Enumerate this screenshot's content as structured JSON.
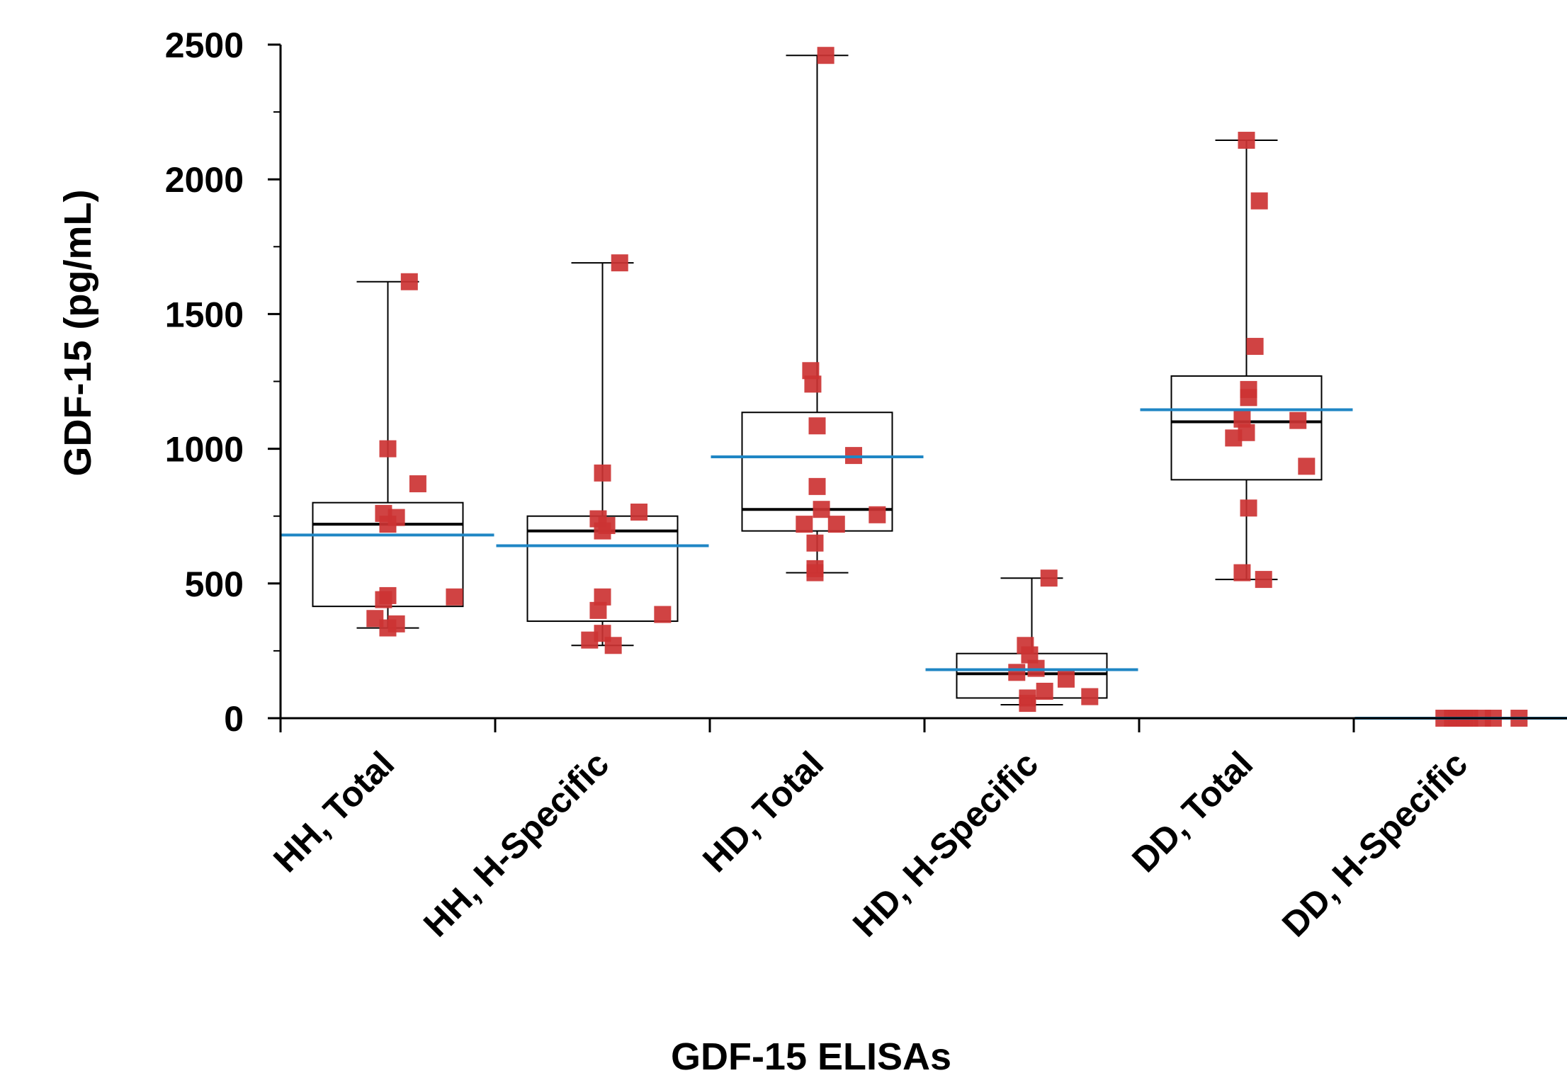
{
  "chart_data": {
    "type": "box",
    "title": "",
    "xlabel": "GDF-15 ELISAs",
    "ylabel": "GDF-15 (pg/mL)",
    "ylim": [
      0,
      2500
    ],
    "yticks": [
      0,
      500,
      1000,
      1500,
      2000,
      2500
    ],
    "grid": false,
    "legend": "none",
    "categories": [
      "HH, Total",
      "HH, H-Specific",
      "HD, Total",
      "HD, H-Specific",
      "DD, Total",
      "DD, H-Specific"
    ],
    "boxes": [
      {
        "min": 335,
        "q1": 415,
        "median": 720,
        "q3": 800,
        "max": 1620,
        "mean": 680
      },
      {
        "min": 270,
        "q1": 360,
        "median": 695,
        "q3": 750,
        "max": 1690,
        "mean": 640
      },
      {
        "min": 540,
        "q1": 695,
        "median": 775,
        "q3": 1135,
        "max": 2460,
        "mean": 970
      },
      {
        "min": 50,
        "q1": 75,
        "median": 165,
        "q3": 240,
        "max": 520,
        "mean": 180
      },
      {
        "min": 515,
        "q1": 885,
        "median": 1100,
        "q3": 1270,
        "max": 2145,
        "mean": 1145
      },
      {
        "min": 0,
        "q1": 0,
        "median": 0,
        "q3": 0,
        "max": 0,
        "mean": 0
      }
    ],
    "points": [
      [
        {
          "dx": 0.1,
          "y": 1620
        },
        {
          "dx": 0.0,
          "y": 1000
        },
        {
          "dx": 0.14,
          "y": 870
        },
        {
          "dx": -0.02,
          "y": 760
        },
        {
          "dx": 0.04,
          "y": 745
        },
        {
          "dx": 0.0,
          "y": 720
        },
        {
          "dx": 0.0,
          "y": 455
        },
        {
          "dx": -0.02,
          "y": 440
        },
        {
          "dx": 0.31,
          "y": 450
        },
        {
          "dx": -0.06,
          "y": 370
        },
        {
          "dx": 0.04,
          "y": 350
        },
        {
          "dx": 0.0,
          "y": 335
        }
      ],
      [
        {
          "dx": 0.08,
          "y": 1690
        },
        {
          "dx": 0.0,
          "y": 910
        },
        {
          "dx": 0.17,
          "y": 765
        },
        {
          "dx": -0.02,
          "y": 740
        },
        {
          "dx": 0.02,
          "y": 715
        },
        {
          "dx": 0.0,
          "y": 695
        },
        {
          "dx": 0.0,
          "y": 450
        },
        {
          "dx": -0.02,
          "y": 400
        },
        {
          "dx": 0.28,
          "y": 385
        },
        {
          "dx": -0.06,
          "y": 290
        },
        {
          "dx": 0.0,
          "y": 315
        },
        {
          "dx": 0.05,
          "y": 270
        }
      ],
      [
        {
          "dx": 0.04,
          "y": 2460
        },
        {
          "dx": -0.03,
          "y": 1290
        },
        {
          "dx": -0.02,
          "y": 1240
        },
        {
          "dx": 0.0,
          "y": 1085
        },
        {
          "dx": 0.17,
          "y": 975
        },
        {
          "dx": 0.0,
          "y": 860
        },
        {
          "dx": 0.02,
          "y": 775
        },
        {
          "dx": 0.28,
          "y": 755
        },
        {
          "dx": 0.09,
          "y": 720
        },
        {
          "dx": -0.06,
          "y": 720
        },
        {
          "dx": -0.01,
          "y": 650
        },
        {
          "dx": -0.01,
          "y": 555
        },
        {
          "dx": -0.01,
          "y": 540
        }
      ],
      [
        {
          "dx": 0.08,
          "y": 520
        },
        {
          "dx": -0.03,
          "y": 270
        },
        {
          "dx": -0.01,
          "y": 235
        },
        {
          "dx": 0.02,
          "y": 185
        },
        {
          "dx": -0.07,
          "y": 170
        },
        {
          "dx": 0.16,
          "y": 145
        },
        {
          "dx": 0.06,
          "y": 100
        },
        {
          "dx": 0.27,
          "y": 80
        },
        {
          "dx": -0.02,
          "y": 75
        },
        {
          "dx": -0.02,
          "y": 55
        }
      ],
      [
        {
          "dx": 0.0,
          "y": 2145
        },
        {
          "dx": 0.06,
          "y": 1920
        },
        {
          "dx": 0.04,
          "y": 1380
        },
        {
          "dx": 0.01,
          "y": 1220
        },
        {
          "dx": 0.01,
          "y": 1190
        },
        {
          "dx": -0.02,
          "y": 1110
        },
        {
          "dx": 0.24,
          "y": 1105
        },
        {
          "dx": 0.0,
          "y": 1060
        },
        {
          "dx": -0.06,
          "y": 1040
        },
        {
          "dx": 0.28,
          "y": 935
        },
        {
          "dx": 0.01,
          "y": 780
        },
        {
          "dx": -0.02,
          "y": 540
        },
        {
          "dx": 0.08,
          "y": 515
        }
      ],
      [
        {
          "dx": -0.08,
          "y": 0
        },
        {
          "dx": -0.04,
          "y": 0
        },
        {
          "dx": -0.02,
          "y": 0
        },
        {
          "dx": 0.0,
          "y": 0
        },
        {
          "dx": 0.02,
          "y": 0
        },
        {
          "dx": 0.04,
          "y": 0
        },
        {
          "dx": 0.1,
          "y": 0
        },
        {
          "dx": 0.15,
          "y": 0
        },
        {
          "dx": 0.27,
          "y": 0
        }
      ]
    ],
    "colors": {
      "points": "#cc3333",
      "mean": "#1f86c4",
      "box": "#000000",
      "median": "#000000"
    }
  }
}
